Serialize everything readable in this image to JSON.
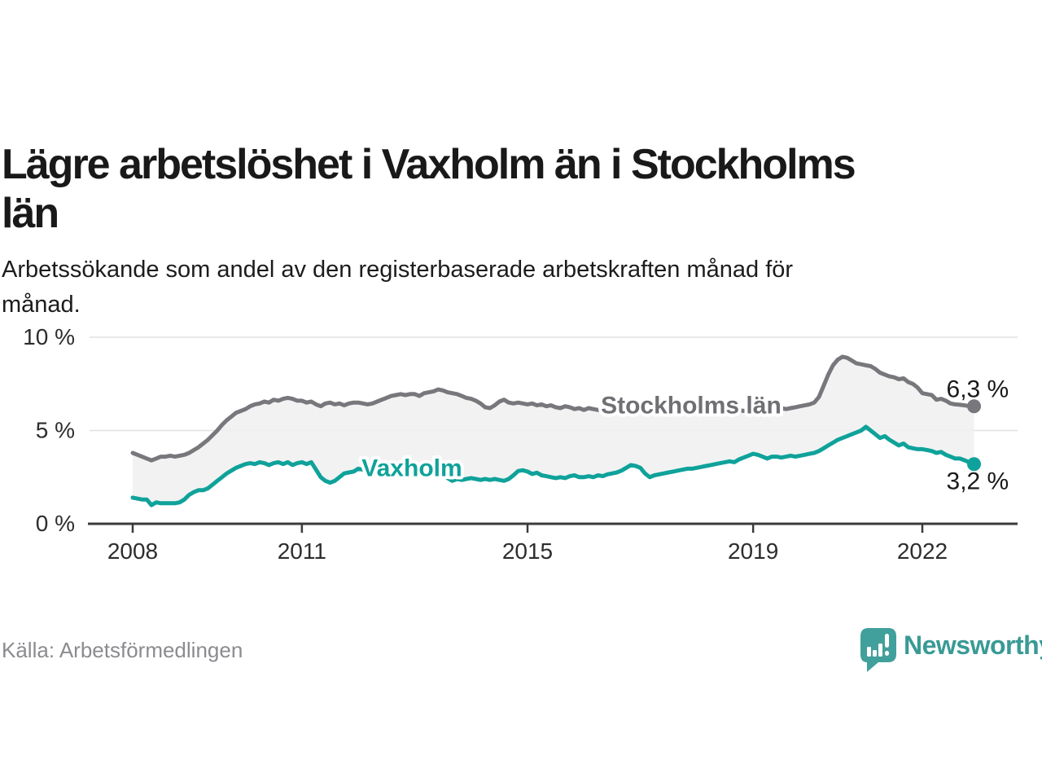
{
  "header": {
    "title_line1": "Lägre arbetslöshet i Vaxholm än i Stockholms",
    "title_line2": "län",
    "subtitle_line1": "Arbetssökande som andel av den registerbaserade arbetskraften månad för",
    "subtitle_line2": "månad."
  },
  "footer": {
    "source": "Källa: Arbetsförmedlingen",
    "brand": "Newsworthy"
  },
  "colors": {
    "vaxholm": "#0fa29a",
    "stockholm_line": "#77777c",
    "stockholm_label": "#6f6f74",
    "axis": "#3b3b3b",
    "axis_text": "#2d2d2d",
    "gridline": "#e0e0e0",
    "area_fill": "rgba(240,240,240,0.85)",
    "value_label": "#1a1a1a",
    "brand_teal": "#41a09b"
  },
  "chart_data": {
    "type": "line",
    "title": "Lägre arbetslöshet i Vaxholm än i Stockholms län",
    "subtitle": "Arbetssökande som andel av den registerbaserade arbetskraften månad för månad.",
    "unit": "%",
    "start_year": 2008,
    "points_per_year": 12,
    "x_axis": {
      "tick_years": [
        2008,
        2011,
        2015,
        2019,
        2022
      ],
      "range": [
        "2008-01",
        "2022-12"
      ]
    },
    "y_axis": {
      "ticks": [
        {
          "value": 0,
          "label": "0 %"
        },
        {
          "value": 5,
          "label": "5 %"
        },
        {
          "value": 10,
          "label": "10 %"
        }
      ],
      "lim": [
        0,
        10
      ],
      "grid": true
    },
    "series": [
      {
        "name": "Stockholms län",
        "color": "#77777c",
        "label_color": "#6f6f74",
        "end_label": "6,3 %",
        "end_value": 6.3,
        "label_anchor": {
          "x_year": 2017.9,
          "y_pct": 5.92
        },
        "end_label_side": "above",
        "values": [
          3.8,
          3.7,
          3.6,
          3.5,
          3.4,
          3.5,
          3.6,
          3.6,
          3.65,
          3.6,
          3.65,
          3.7,
          3.8,
          3.95,
          4.1,
          4.3,
          4.5,
          4.75,
          5.0,
          5.3,
          5.55,
          5.75,
          5.95,
          6.05,
          6.15,
          6.3,
          6.4,
          6.45,
          6.55,
          6.5,
          6.65,
          6.6,
          6.7,
          6.75,
          6.7,
          6.6,
          6.6,
          6.5,
          6.55,
          6.4,
          6.3,
          6.45,
          6.5,
          6.4,
          6.45,
          6.35,
          6.45,
          6.5,
          6.5,
          6.45,
          6.4,
          6.45,
          6.55,
          6.65,
          6.75,
          6.85,
          6.9,
          6.95,
          6.9,
          6.95,
          6.95,
          6.85,
          7.0,
          7.05,
          7.1,
          7.2,
          7.15,
          7.05,
          7.0,
          6.95,
          6.85,
          6.75,
          6.7,
          6.6,
          6.45,
          6.25,
          6.2,
          6.35,
          6.55,
          6.65,
          6.5,
          6.45,
          6.5,
          6.45,
          6.4,
          6.45,
          6.35,
          6.4,
          6.3,
          6.35,
          6.25,
          6.2,
          6.3,
          6.25,
          6.15,
          6.2,
          6.1,
          6.2,
          6.15,
          6.1,
          6.15,
          6.05,
          6.1,
          6.05,
          6.1,
          6.05,
          6.0,
          6.05,
          6.05,
          6.1,
          6.05,
          6.0,
          6.05,
          6.1,
          6.05,
          6.0,
          6.05,
          6.1,
          6.05,
          6.0,
          6.05,
          6.1,
          6.05,
          6.1,
          6.05,
          6.0,
          6.05,
          6.1,
          6.05,
          6.1,
          6.05,
          6.1,
          6.1,
          6.05,
          6.1,
          6.15,
          6.1,
          6.15,
          6.2,
          6.15,
          6.2,
          6.25,
          6.3,
          6.35,
          6.4,
          6.5,
          6.8,
          7.4,
          8.0,
          8.5,
          8.8,
          8.95,
          8.9,
          8.75,
          8.6,
          8.55,
          8.5,
          8.45,
          8.3,
          8.1,
          8.0,
          7.9,
          7.85,
          7.75,
          7.8,
          7.6,
          7.5,
          7.3,
          7.0,
          6.95,
          6.9,
          6.65,
          6.7,
          6.6,
          6.45,
          6.4,
          6.38,
          6.35,
          6.3,
          6.3
        ]
      },
      {
        "name": "Vaxholm",
        "color": "#0fa29a",
        "label_color": "#0fa29a",
        "end_label": "3,2 %",
        "end_value": 3.2,
        "label_anchor": {
          "x_year": 2012.95,
          "y_pct": 2.55
        },
        "end_label_side": "below",
        "values": [
          1.4,
          1.35,
          1.3,
          1.3,
          1.0,
          1.15,
          1.1,
          1.1,
          1.1,
          1.1,
          1.15,
          1.3,
          1.55,
          1.7,
          1.8,
          1.8,
          1.9,
          2.1,
          2.3,
          2.5,
          2.7,
          2.85,
          3.0,
          3.1,
          3.2,
          3.25,
          3.2,
          3.3,
          3.25,
          3.15,
          3.25,
          3.3,
          3.2,
          3.3,
          3.15,
          3.25,
          3.3,
          3.2,
          3.3,
          2.9,
          2.5,
          2.3,
          2.2,
          2.3,
          2.5,
          2.7,
          2.75,
          2.8,
          2.95,
          2.9,
          3.0,
          2.85,
          2.9,
          2.8,
          2.85,
          2.7,
          2.75,
          2.7,
          2.75,
          2.7,
          2.75,
          2.7,
          2.75,
          2.7,
          2.65,
          2.6,
          2.55,
          2.45,
          2.3,
          2.4,
          2.35,
          2.4,
          2.45,
          2.4,
          2.35,
          2.4,
          2.35,
          2.4,
          2.35,
          2.3,
          2.4,
          2.6,
          2.83,
          2.87,
          2.8,
          2.67,
          2.74,
          2.6,
          2.55,
          2.5,
          2.45,
          2.5,
          2.45,
          2.55,
          2.6,
          2.5,
          2.5,
          2.55,
          2.5,
          2.6,
          2.55,
          2.65,
          2.7,
          2.75,
          2.85,
          3.0,
          3.15,
          3.1,
          3.0,
          2.7,
          2.5,
          2.6,
          2.65,
          2.7,
          2.75,
          2.8,
          2.85,
          2.9,
          2.95,
          2.95,
          3.0,
          3.05,
          3.1,
          3.15,
          3.2,
          3.25,
          3.3,
          3.35,
          3.3,
          3.45,
          3.55,
          3.65,
          3.75,
          3.7,
          3.6,
          3.5,
          3.6,
          3.6,
          3.55,
          3.6,
          3.65,
          3.6,
          3.65,
          3.7,
          3.75,
          3.8,
          3.9,
          4.05,
          4.2,
          4.35,
          4.5,
          4.6,
          4.7,
          4.8,
          4.9,
          5.0,
          5.2,
          5.0,
          4.8,
          4.6,
          4.7,
          4.5,
          4.35,
          4.2,
          4.3,
          4.1,
          4.05,
          4.0,
          4.0,
          3.95,
          3.9,
          3.8,
          3.85,
          3.7,
          3.6,
          3.5,
          3.5,
          3.4,
          3.3,
          3.2
        ]
      }
    ]
  }
}
